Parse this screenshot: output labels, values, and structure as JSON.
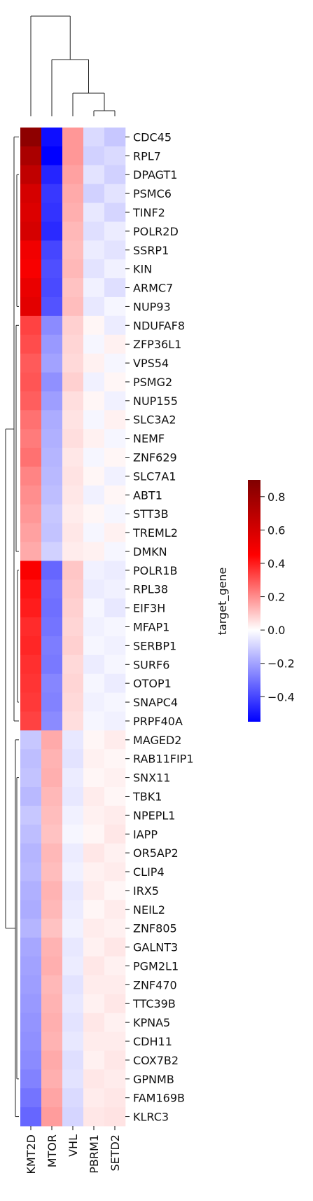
{
  "chart_data": {
    "type": "heatmap",
    "title": "",
    "columns": [
      "KMT2D",
      "MTOR",
      "VHL",
      "PBRM1",
      "SETD2"
    ],
    "row_labels": [
      "CDC45",
      "RPL7",
      "DPAGT1",
      "PSMC6",
      "TINF2",
      "POLR2D",
      "SSRP1",
      "KIN",
      "ARMC7",
      "NUP93",
      "NDUFAF8",
      "ZFP36L1",
      "VPS54",
      "PSMG2",
      "NUP155",
      "SLC3A2",
      "NEMF",
      "ZNF629",
      "SLC7A1",
      "ABT1",
      "STT3B",
      "TREML2",
      "DMKN",
      "POLR1B",
      "RPL38",
      "EIF3H",
      "MFAP1",
      "SERBP1",
      "SURF6",
      "OTOP1",
      "SNAPC4",
      "PRPF40A",
      "MAGED2",
      "RAB11FIP1",
      "SNX11",
      "TBK1",
      "NPEPL1",
      "IAPP",
      "OR5AP2",
      "CLIP4",
      "IRX5",
      "NEIL2",
      "ZNF805",
      "GALNT3",
      "PGM2L1",
      "ZNF470",
      "TTC39B",
      "KPNA5",
      "CDH11",
      "COX7B2",
      "GPNMB",
      "FAM169B",
      "KLRC3"
    ],
    "values": [
      [
        0.86,
        -0.52,
        0.22,
        -0.08,
        -0.12
      ],
      [
        0.78,
        -0.55,
        0.22,
        -0.1,
        -0.08
      ],
      [
        0.72,
        -0.47,
        0.2,
        -0.06,
        -0.1
      ],
      [
        0.66,
        -0.43,
        0.18,
        -0.1,
        -0.06
      ],
      [
        0.64,
        -0.44,
        0.17,
        -0.05,
        -0.09
      ],
      [
        0.66,
        -0.46,
        0.15,
        -0.07,
        -0.04
      ],
      [
        0.58,
        -0.4,
        0.14,
        -0.04,
        -0.06
      ],
      [
        0.56,
        -0.38,
        0.15,
        -0.06,
        -0.03
      ],
      [
        0.6,
        -0.39,
        0.13,
        -0.03,
        -0.07
      ],
      [
        0.62,
        -0.37,
        0.14,
        -0.05,
        -0.02
      ],
      [
        0.4,
        -0.25,
        0.1,
        0.02,
        -0.04
      ],
      [
        0.38,
        -0.22,
        0.09,
        -0.02,
        0.03
      ],
      [
        0.35,
        -0.2,
        0.08,
        0.03,
        -0.02
      ],
      [
        0.36,
        -0.24,
        0.1,
        -0.03,
        0.02
      ],
      [
        0.34,
        -0.21,
        0.07,
        0.02,
        -0.03
      ],
      [
        0.3,
        -0.18,
        0.06,
        -0.02,
        0.03
      ],
      [
        0.28,
        -0.17,
        0.07,
        0.03,
        -0.02
      ],
      [
        0.3,
        -0.16,
        0.05,
        -0.02,
        0.02
      ],
      [
        0.26,
        -0.15,
        0.06,
        0.02,
        -0.03
      ],
      [
        0.24,
        -0.14,
        0.05,
        -0.03,
        0.02
      ],
      [
        0.22,
        -0.12,
        0.04,
        0.02,
        -0.02
      ],
      [
        0.2,
        -0.13,
        0.05,
        -0.02,
        0.03
      ],
      [
        0.18,
        -0.1,
        0.04,
        0.03,
        -0.02
      ],
      [
        0.55,
        -0.33,
        0.12,
        -0.03,
        -0.04
      ],
      [
        0.5,
        -0.3,
        0.11,
        -0.04,
        -0.03
      ],
      [
        0.48,
        -0.31,
        0.1,
        -0.02,
        -0.05
      ],
      [
        0.45,
        -0.3,
        0.09,
        -0.03,
        -0.02
      ],
      [
        0.46,
        -0.28,
        0.1,
        -0.02,
        -0.03
      ],
      [
        0.44,
        -0.29,
        0.08,
        -0.04,
        -0.02
      ],
      [
        0.43,
        -0.26,
        0.09,
        -0.02,
        -0.04
      ],
      [
        0.42,
        -0.27,
        0.08,
        -0.03,
        -0.02
      ],
      [
        0.4,
        -0.25,
        0.07,
        -0.02,
        -0.03
      ],
      [
        -0.12,
        0.18,
        -0.05,
        0.02,
        0.04
      ],
      [
        -0.14,
        0.16,
        -0.06,
        0.03,
        0.02
      ],
      [
        -0.13,
        0.17,
        -0.04,
        0.02,
        0.03
      ],
      [
        -0.15,
        0.15,
        -0.05,
        0.04,
        0.02
      ],
      [
        -0.12,
        0.14,
        -0.03,
        0.03,
        0.04
      ],
      [
        -0.14,
        0.13,
        -0.02,
        0.02,
        0.05
      ],
      [
        -0.16,
        0.15,
        -0.04,
        0.05,
        0.03
      ],
      [
        -0.15,
        0.14,
        -0.03,
        0.03,
        0.04
      ],
      [
        -0.17,
        0.16,
        -0.05,
        0.04,
        0.02
      ],
      [
        -0.18,
        0.15,
        -0.04,
        0.02,
        0.04
      ],
      [
        -0.16,
        0.13,
        -0.03,
        0.04,
        0.03
      ],
      [
        -0.19,
        0.16,
        -0.05,
        0.03,
        0.05
      ],
      [
        -0.2,
        0.17,
        -0.04,
        0.05,
        0.03
      ],
      [
        -0.21,
        0.15,
        -0.06,
        0.04,
        0.04
      ],
      [
        -0.22,
        0.16,
        -0.05,
        0.03,
        0.05
      ],
      [
        -0.23,
        0.17,
        -0.06,
        0.05,
        0.03
      ],
      [
        -0.24,
        0.16,
        -0.05,
        0.04,
        0.04
      ],
      [
        -0.25,
        0.18,
        -0.07,
        0.03,
        0.05
      ],
      [
        -0.27,
        0.17,
        -0.06,
        0.05,
        0.04
      ],
      [
        -0.3,
        0.19,
        -0.08,
        0.04,
        0.05
      ],
      [
        -0.33,
        0.21,
        -0.09,
        0.05,
        0.06
      ]
    ],
    "colormap": "bwr",
    "vmin": -0.55,
    "vmax": 0.9,
    "colorbar": {
      "label": "target_gene",
      "ticks": [
        0.8,
        0.6,
        0.4,
        0.2,
        0.0,
        -0.2,
        -0.4
      ]
    }
  }
}
